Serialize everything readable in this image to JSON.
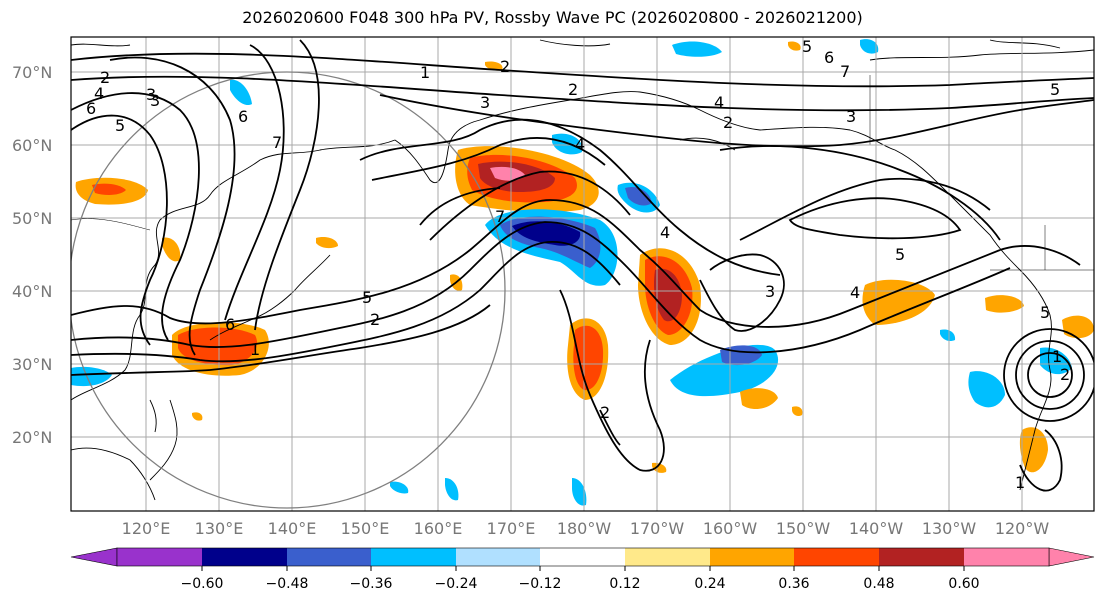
{
  "title": "2026020600 F048 300 hPa PV, Rossby Wave PC (2026020800 - 2026021200)",
  "latitudes": [
    "70°N",
    "60°N",
    "50°N",
    "40°N",
    "30°N",
    "20°N"
  ],
  "longitudes": [
    "120°E",
    "130°E",
    "140°E",
    "150°E",
    "160°E",
    "170°E",
    "180°W",
    "170°W",
    "160°W",
    "150°W",
    "140°W",
    "130°W",
    "120°W"
  ],
  "colorbar": {
    "colors": [
      "#9932cc",
      "#00008b",
      "#3a5fcd",
      "#00bfff",
      "#b0e0ff",
      "#ffffff",
      "#ffe98a",
      "#ffa500",
      "#ff4500",
      "#b22222",
      "#ff82ab"
    ],
    "ticks": [
      "−0.60",
      "−0.48",
      "−0.36",
      "−0.24",
      "−0.12",
      "0.12",
      "0.24",
      "0.36",
      "0.48",
      "0.60"
    ]
  },
  "contour_labels": [
    "2",
    "4",
    "6",
    "5",
    "3",
    "2",
    "1",
    "3",
    "2",
    "4",
    "2",
    "3",
    "5",
    "6",
    "7",
    "5",
    "6",
    "7",
    "4",
    "6",
    "5",
    "2",
    "1",
    "4",
    "3",
    "5",
    "4",
    "2",
    "1",
    "5",
    "3",
    "2",
    "7",
    "1"
  ]
}
